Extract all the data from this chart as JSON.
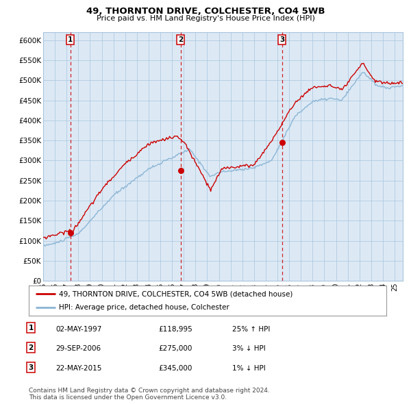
{
  "title": "49, THORNTON DRIVE, COLCHESTER, CO4 5WB",
  "subtitle": "Price paid vs. HM Land Registry's House Price Index (HPI)",
  "plot_bg_color": "#dce9f5",
  "red_line_color": "#cc0000",
  "blue_line_color": "#8ab4d4",
  "sale_marker_color": "#cc0000",
  "dashed_line_color": "#cc0000",
  "ylim": [
    0,
    620000
  ],
  "yticks": [
    0,
    50000,
    100000,
    150000,
    200000,
    250000,
    300000,
    350000,
    400000,
    450000,
    500000,
    550000,
    600000
  ],
  "xlim_start": 1995.0,
  "xlim_end": 2025.7,
  "sales": [
    {
      "label": "1",
      "date_num": 1997.33,
      "price": 118995,
      "date_str": "02-MAY-1997",
      "price_str": "£118,995",
      "hpi_diff": "25% ↑ HPI"
    },
    {
      "label": "2",
      "date_num": 2006.75,
      "price": 275000,
      "date_str": "29-SEP-2006",
      "price_str": "£275,000",
      "hpi_diff": "3% ↓ HPI"
    },
    {
      "label": "3",
      "date_num": 2015.38,
      "price": 345000,
      "date_str": "22-MAY-2015",
      "price_str": "£345,000",
      "hpi_diff": "1% ↓ HPI"
    }
  ],
  "legend_red": "49, THORNTON DRIVE, COLCHESTER, CO4 5WB (detached house)",
  "legend_blue": "HPI: Average price, detached house, Colchester",
  "footer1": "Contains HM Land Registry data © Crown copyright and database right 2024.",
  "footer2": "This data is licensed under the Open Government Licence v3.0.",
  "title_fontsize": 9.5,
  "subtitle_fontsize": 8.0,
  "tick_fontsize": 7.5,
  "xtick_fontsize": 7.0,
  "legend_fontsize": 7.5,
  "table_fontsize": 7.5,
  "footer_fontsize": 6.5
}
